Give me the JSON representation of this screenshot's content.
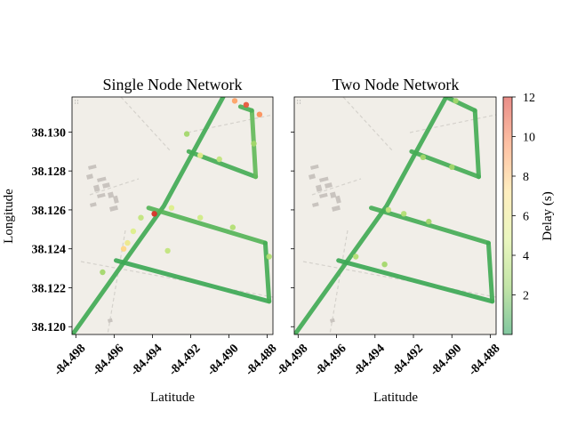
{
  "chart_data": {
    "type": "scatter",
    "colormap": {
      "label": "Delay (s)",
      "range": [
        0,
        12
      ],
      "ticks": [
        "2",
        "4",
        "6",
        "8",
        "10",
        "12"
      ],
      "tick_values": [
        2,
        4,
        6,
        8,
        10,
        12
      ],
      "colors": [
        "#1a9850",
        "#91cf60",
        "#d9ef8b",
        "#fee08b",
        "#fc8d59",
        "#d73027"
      ]
    },
    "map_colors": {
      "background": "#f1eee8",
      "road_dash": "#d5d2cc",
      "building": "#c9c4bf"
    },
    "xlim": [
      -84.4982,
      -84.4877
    ],
    "ylim": [
      38.1196,
      38.1318
    ],
    "panels": [
      {
        "title": "Single Node Network",
        "xlabel": "Latitude",
        "ylabel": "Longitude",
        "x_ticks": [
          "-84.498",
          "-84.496",
          "-84.494",
          "-84.492",
          "-84.490",
          "-84.488"
        ],
        "x_tick_values": [
          -84.498,
          -84.496,
          -84.494,
          -84.492,
          -84.49,
          -84.488
        ],
        "y_ticks": [
          "38.120",
          "38.122",
          "38.124",
          "38.126",
          "38.128",
          "38.130"
        ],
        "y_tick_values": [
          38.12,
          38.122,
          38.124,
          38.126,
          38.128,
          38.13
        ],
        "tracks": [
          {
            "path": [
              [
                -84.4981,
                38.1197
              ],
              [
                -84.4934,
                38.1262
              ],
              [
                -84.4903,
                38.1318
              ]
            ],
            "delay": 0.8
          },
          {
            "path": [
              [
                -84.4959,
                38.1234
              ],
              [
                -84.4879,
                38.1213
              ]
            ],
            "delay": 0.7
          },
          {
            "path": [
              [
                -84.4942,
                38.1261
              ],
              [
                -84.4881,
                38.1243
              ]
            ],
            "delay": 1.2
          },
          {
            "path": [
              [
                -84.4881,
                38.1243
              ],
              [
                -84.4879,
                38.1213
              ]
            ],
            "delay": 0.9
          },
          {
            "path": [
              [
                -84.4921,
                38.129
              ],
              [
                -84.4886,
                38.1277
              ]
            ],
            "delay": 0.9
          },
          {
            "path": [
              [
                -84.4886,
                38.1277
              ],
              [
                -84.4888,
                38.1311
              ]
            ],
            "delay": 1.5
          },
          {
            "path": [
              [
                -84.4894,
                38.1313
              ],
              [
                -84.4888,
                38.1311
              ]
            ],
            "delay": 1.0
          }
        ],
        "points": [
          {
            "x": -84.4955,
            "y": 38.124,
            "delay": 7.5
          },
          {
            "x": -84.4953,
            "y": 38.1243,
            "delay": 6.0
          },
          {
            "x": -84.495,
            "y": 38.1249,
            "delay": 5.0
          },
          {
            "x": -84.4946,
            "y": 38.1256,
            "delay": 4.0
          },
          {
            "x": -84.4939,
            "y": 38.1258,
            "delay": 12.0
          },
          {
            "x": -84.493,
            "y": 38.1261,
            "delay": 5.0
          },
          {
            "x": -84.4915,
            "y": 38.1256,
            "delay": 4.5
          },
          {
            "x": -84.4898,
            "y": 38.1251,
            "delay": 3.5
          },
          {
            "x": -84.4932,
            "y": 38.1239,
            "delay": 4.0
          },
          {
            "x": -84.4905,
            "y": 38.1286,
            "delay": 4.0
          },
          {
            "x": -84.4915,
            "y": 38.1288,
            "delay": 5.5
          },
          {
            "x": -84.4922,
            "y": 38.1299,
            "delay": 3.0
          },
          {
            "x": -84.4897,
            "y": 38.1316,
            "delay": 9.0
          },
          {
            "x": -84.4891,
            "y": 38.1314,
            "delay": 11.0
          },
          {
            "x": -84.4884,
            "y": 38.1309,
            "delay": 9.5
          },
          {
            "x": -84.4887,
            "y": 38.1294,
            "delay": 3.0
          },
          {
            "x": -84.4879,
            "y": 38.1236,
            "delay": 3.5
          },
          {
            "x": -84.4966,
            "y": 38.1228,
            "delay": 3.0
          }
        ]
      },
      {
        "title": "Two Node Network",
        "xlabel": "Latitude",
        "ylabel": "",
        "x_ticks": [
          "-84.498",
          "-84.496",
          "-84.494",
          "-84.492",
          "-84.490",
          "-84.488"
        ],
        "x_tick_values": [
          -84.498,
          -84.496,
          -84.494,
          -84.492,
          -84.49,
          -84.488
        ],
        "y_ticks": [],
        "y_tick_values": [
          38.12,
          38.122,
          38.124,
          38.126,
          38.128,
          38.13
        ],
        "tracks": [
          {
            "path": [
              [
                -84.4981,
                38.1197
              ],
              [
                -84.4934,
                38.1262
              ],
              [
                -84.4903,
                38.1318
              ]
            ],
            "delay": 0.8
          },
          {
            "path": [
              [
                -84.4959,
                38.1234
              ],
              [
                -84.4879,
                38.1213
              ]
            ],
            "delay": 0.7
          },
          {
            "path": [
              [
                -84.4942,
                38.1261
              ],
              [
                -84.4881,
                38.1243
              ]
            ],
            "delay": 0.9
          },
          {
            "path": [
              [
                -84.4881,
                38.1243
              ],
              [
                -84.4879,
                38.1213
              ]
            ],
            "delay": 0.8
          },
          {
            "path": [
              [
                -84.4921,
                38.129
              ],
              [
                -84.4886,
                38.1277
              ]
            ],
            "delay": 0.9
          },
          {
            "path": [
              [
                -84.4886,
                38.1277
              ],
              [
                -84.4888,
                38.1311
              ]
            ],
            "delay": 0.9
          },
          {
            "path": [
              [
                -84.4903,
                38.1318
              ],
              [
                -84.4888,
                38.1311
              ]
            ],
            "delay": 0.9
          }
        ],
        "points": [
          {
            "x": -84.4933,
            "y": 38.126,
            "delay": 4.0
          },
          {
            "x": -84.4925,
            "y": 38.1258,
            "delay": 3.5
          },
          {
            "x": -84.4912,
            "y": 38.1254,
            "delay": 3.0
          },
          {
            "x": -84.495,
            "y": 38.1236,
            "delay": 3.5
          },
          {
            "x": -84.4935,
            "y": 38.1232,
            "delay": 3.0
          },
          {
            "x": -84.4915,
            "y": 38.1287,
            "delay": 3.0
          },
          {
            "x": -84.49,
            "y": 38.1282,
            "delay": 3.0
          },
          {
            "x": -84.4898,
            "y": 38.1316,
            "delay": 3.0
          }
        ]
      }
    ]
  }
}
